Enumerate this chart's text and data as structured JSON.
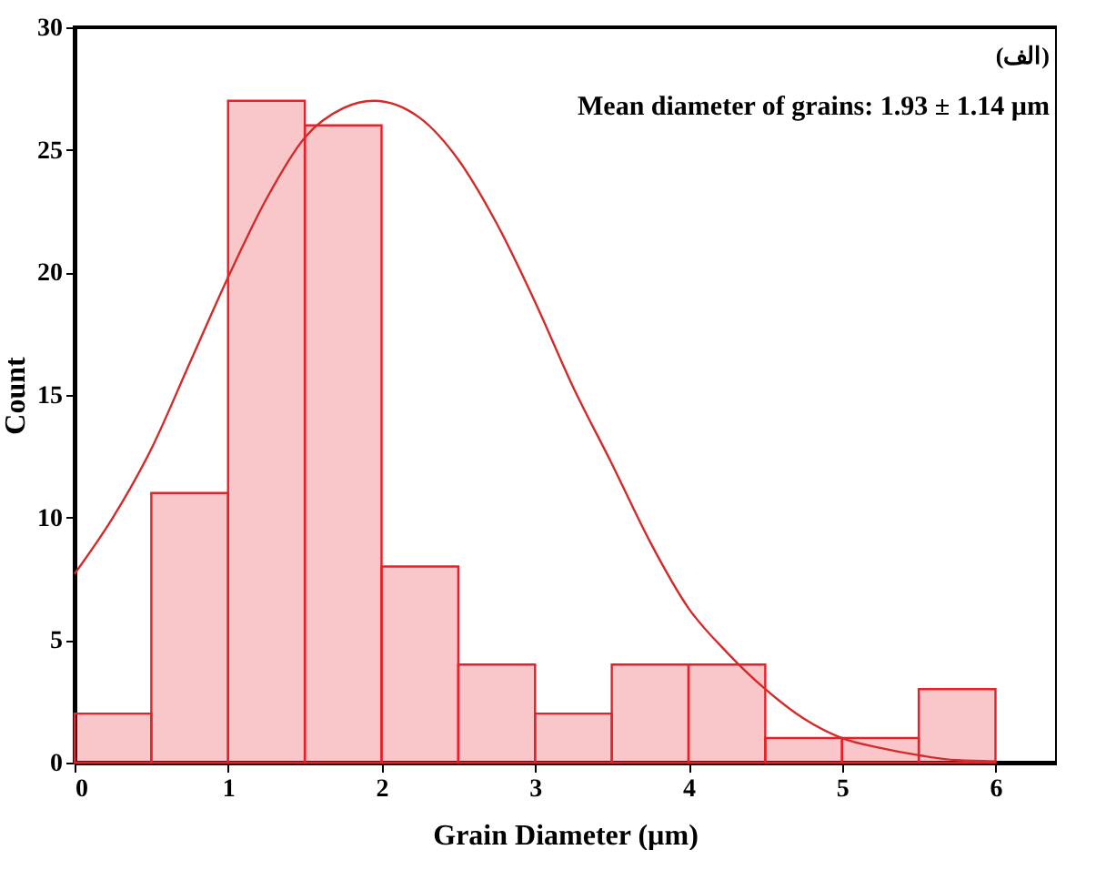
{
  "chart_data": {
    "type": "histogram",
    "xlabel": "Grain Diameter (µm)",
    "ylabel": "Count",
    "bins": [
      0,
      0.5,
      1,
      1.5,
      2,
      2.5,
      3,
      3.5,
      4,
      4.5,
      5,
      5.5,
      6
    ],
    "values": [
      2,
      11,
      27,
      26,
      8,
      4,
      2,
      4,
      4,
      1,
      1,
      3
    ],
    "color": "#e8202a",
    "series": [
      {
        "type": "line",
        "color": "#d42a2a",
        "x": [
          0,
          0.25,
          0.5,
          0.75,
          1,
          1.25,
          1.5,
          1.75,
          1.95,
          2.25,
          2.5,
          2.75,
          3,
          3.25,
          3.5,
          3.75,
          4,
          4.25,
          4.5,
          4.75,
          5,
          5.25,
          5.5,
          5.75,
          6
        ],
        "values": [
          7.7,
          10,
          12.8,
          16.3,
          19.8,
          23,
          25.5,
          26.7,
          27,
          26.3,
          24.6,
          22,
          18.8,
          15.3,
          12.2,
          9,
          6.3,
          4.5,
          3,
          1.8,
          1,
          0.6,
          0.3,
          0.1,
          0.05
        ]
      }
    ],
    "xlim": [
      0,
      6.4
    ],
    "xticks": [
      0,
      1,
      2,
      3,
      4,
      5,
      6
    ],
    "ylim": [
      0,
      30
    ],
    "yticks": [
      0,
      5,
      10,
      15,
      20,
      25,
      30
    ],
    "grid": false,
    "annotations": [
      "(الف)",
      "Mean diameter of grains: 1.93 ± 1.14 µm"
    ]
  }
}
